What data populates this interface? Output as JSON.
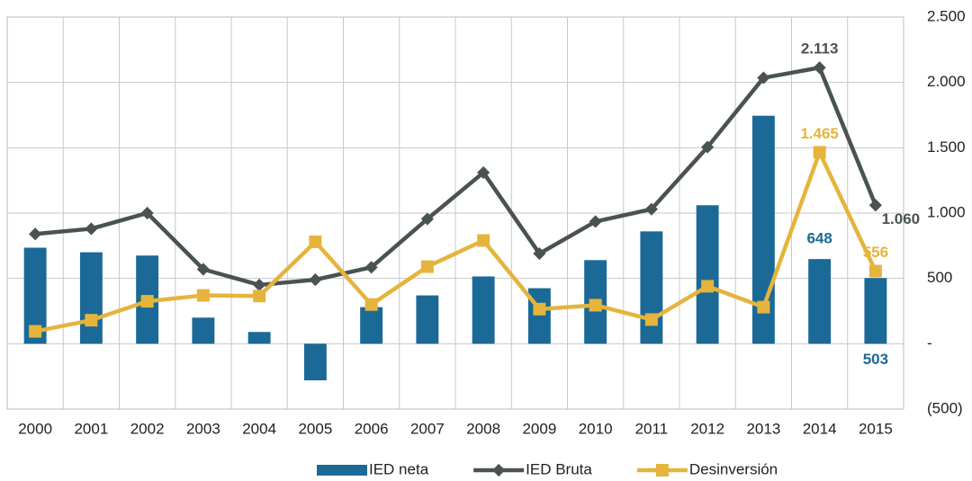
{
  "chart_data": {
    "type": "bar-line",
    "categories": [
      "2000",
      "2001",
      "2002",
      "2003",
      "2004",
      "2005",
      "2006",
      "2007",
      "2008",
      "2009",
      "2010",
      "2011",
      "2012",
      "2013",
      "2014",
      "2015"
    ],
    "series": [
      {
        "name": "IED neta",
        "type": "bar",
        "color": "#1b6996",
        "values": [
          735,
          700,
          675,
          200,
          90,
          -280,
          280,
          370,
          515,
          425,
          640,
          860,
          1060,
          1745,
          648,
          503
        ],
        "value_labels": [
          null,
          null,
          null,
          null,
          null,
          null,
          null,
          null,
          null,
          null,
          null,
          null,
          null,
          null,
          "648",
          "503"
        ]
      },
      {
        "name": "IED Bruta",
        "type": "line",
        "color": "#4a5253",
        "values": [
          840,
          880,
          1000,
          570,
          450,
          490,
          585,
          955,
          1310,
          690,
          935,
          1030,
          1505,
          2035,
          2113,
          1060
        ],
        "value_labels": [
          null,
          null,
          null,
          null,
          null,
          null,
          null,
          null,
          null,
          null,
          null,
          null,
          null,
          null,
          "2.113",
          "1.060"
        ]
      },
      {
        "name": "Desinversión",
        "type": "line",
        "color": "#e5b43c",
        "values": [
          95,
          180,
          325,
          370,
          365,
          780,
          300,
          590,
          790,
          265,
          295,
          185,
          440,
          280,
          1465,
          556
        ],
        "value_labels": [
          null,
          null,
          null,
          null,
          null,
          null,
          null,
          null,
          null,
          null,
          null,
          null,
          null,
          null,
          "1.465",
          "556"
        ]
      }
    ],
    "ylim": [
      -500,
      2500
    ],
    "yticks": [
      {
        "value": -500,
        "label": "(500)"
      },
      {
        "value": 0,
        "label": "-"
      },
      500,
      {
        "value": 1000,
        "label": "1.000"
      },
      {
        "value": 1500,
        "label": "1.500"
      },
      {
        "value": 2000,
        "label": "2.000"
      },
      {
        "value": 2500,
        "label": "2.500"
      }
    ],
    "grid": true,
    "legend": "bottom"
  }
}
